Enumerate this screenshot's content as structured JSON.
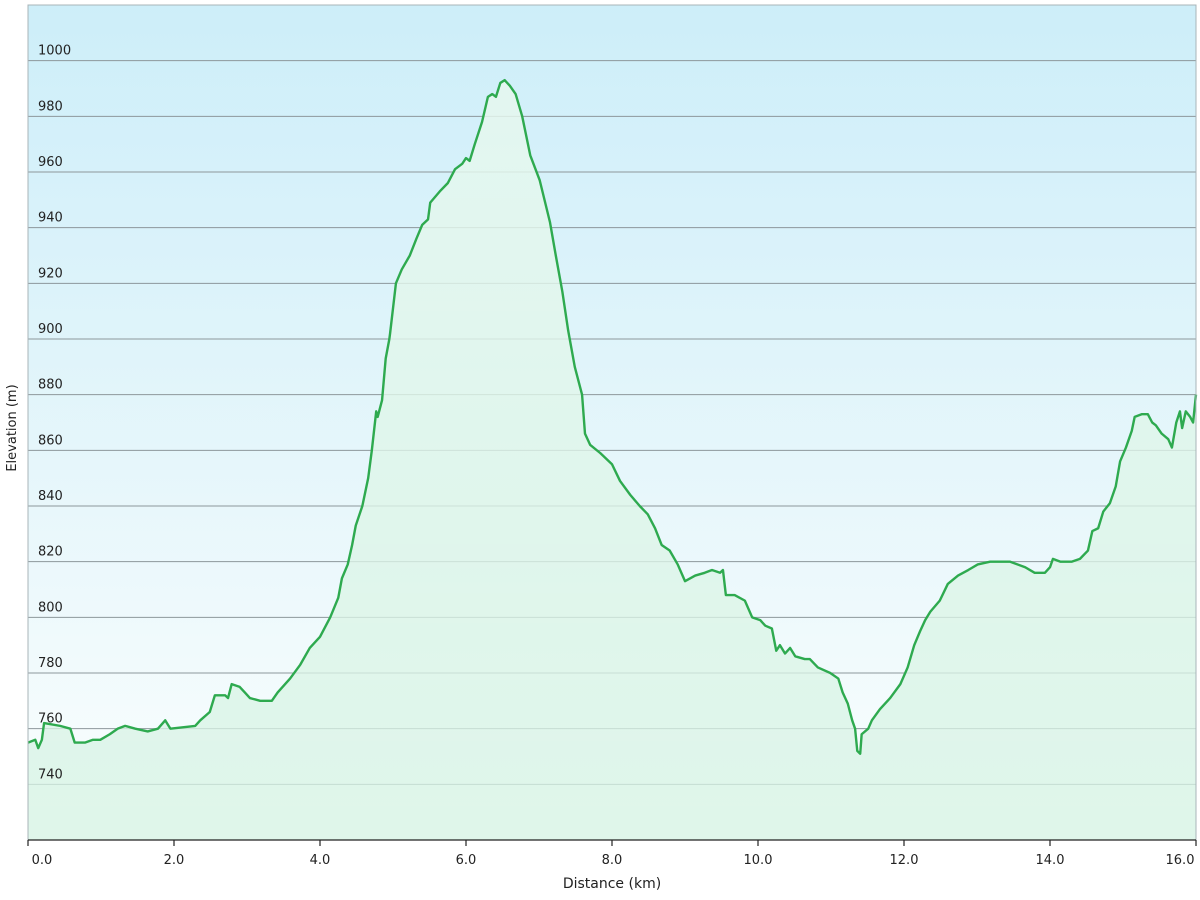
{
  "chart_data": {
    "type": "area",
    "x_label": "Distance  (km)",
    "y_label": "Elevation (m)",
    "color": "#2eaa4f",
    "fill_color": "#d6f3e3",
    "grid": true,
    "xlim": [
      0,
      16
    ],
    "ylim": [
      720,
      1020
    ],
    "xticks": [
      {
        "value": 0,
        "label": "0.0"
      },
      {
        "value": 2,
        "label": "2.0"
      },
      {
        "value": 4,
        "label": "4.0"
      },
      {
        "value": 6,
        "label": "6.0"
      },
      {
        "value": 8,
        "label": "8.0"
      },
      {
        "value": 10,
        "label": "10.0"
      },
      {
        "value": 12,
        "label": "12.0"
      },
      {
        "value": 14,
        "label": "14.0"
      },
      {
        "value": 16,
        "label": "16.0"
      }
    ],
    "yticks": [
      740,
      760,
      780,
      800,
      820,
      840,
      860,
      880,
      900,
      920,
      940,
      960,
      980,
      1000
    ],
    "x": [
      0.0,
      0.1,
      0.14,
      0.19,
      0.22,
      0.44,
      0.58,
      0.64,
      0.78,
      0.89,
      0.99,
      1.12,
      1.23,
      1.33,
      1.47,
      1.64,
      1.78,
      1.88,
      1.95,
      2.29,
      2.36,
      2.49,
      2.56,
      2.7,
      2.74,
      2.79,
      2.9,
      2.97,
      3.04,
      3.18,
      3.34,
      3.42,
      3.59,
      3.73,
      3.86,
      4.0,
      4.14,
      4.25,
      4.3,
      4.38,
      4.44,
      4.49,
      4.58,
      4.66,
      4.71,
      4.77,
      4.79,
      4.85,
      4.9,
      4.95,
      4.96,
      5.04,
      5.12,
      5.23,
      5.32,
      5.4,
      5.48,
      5.51,
      5.64,
      5.75,
      5.85,
      5.95,
      6.0,
      6.05,
      6.12,
      6.22,
      6.3,
      6.36,
      6.41,
      6.47,
      6.53,
      6.6,
      6.68,
      6.77,
      6.88,
      7.01,
      7.15,
      7.23,
      7.32,
      7.4,
      7.49,
      7.59,
      7.63,
      7.7,
      7.84,
      8.0,
      8.11,
      8.25,
      8.38,
      8.49,
      8.59,
      8.68,
      8.79,
      8.9,
      9.0,
      9.14,
      9.27,
      9.37,
      9.48,
      9.52,
      9.56,
      9.68,
      9.82,
      9.92,
      10.03,
      10.1,
      10.19,
      10.25,
      10.3,
      10.37,
      10.44,
      10.51,
      10.64,
      10.71,
      10.82,
      10.99,
      11.1,
      11.16,
      11.23,
      11.29,
      11.33,
      11.36,
      11.4,
      11.42,
      11.51,
      11.56,
      11.67,
      11.81,
      11.95,
      12.05,
      12.14,
      12.22,
      12.29,
      12.36,
      12.49,
      12.6,
      12.74,
      12.88,
      13.01,
      13.18,
      13.45,
      13.66,
      13.79,
      13.93,
      14.0,
      14.04,
      14.14,
      14.3,
      14.41,
      14.52,
      14.58,
      14.66,
      14.73,
      14.82,
      14.9,
      14.96,
      15.04,
      15.12,
      15.16,
      15.26,
      15.34,
      15.4,
      15.45,
      15.53,
      15.62,
      15.67,
      15.73,
      15.78,
      15.81,
      15.86,
      15.92,
      15.96,
      16.0
    ],
    "values": [
      755,
      756,
      753,
      756,
      762,
      761,
      760,
      755,
      755,
      756,
      756,
      758,
      760,
      761,
      760,
      759,
      760,
      763,
      760,
      761,
      763,
      766,
      772,
      772,
      771,
      776,
      775,
      773,
      771,
      770,
      770,
      773,
      778,
      783,
      789,
      793,
      800,
      807,
      814,
      819,
      826,
      833,
      840,
      850,
      860,
      874,
      872,
      878,
      893,
      900,
      902,
      920,
      925,
      930,
      936,
      941,
      943,
      949,
      953,
      956,
      961,
      963,
      965,
      964,
      970,
      978,
      987,
      988,
      987,
      992,
      993,
      991,
      988,
      980,
      966,
      957,
      942,
      930,
      917,
      903,
      890,
      880,
      866,
      862,
      859,
      855,
      849,
      844,
      840,
      837,
      832,
      826,
      824,
      819,
      813,
      815,
      816,
      817,
      816,
      817,
      808,
      808,
      806,
      800,
      799,
      797,
      796,
      788,
      790,
      787,
      789,
      786,
      785,
      785,
      782,
      780,
      778,
      773,
      769,
      763,
      760,
      752,
      751,
      758,
      760,
      763,
      767,
      771,
      776,
      782,
      790,
      795,
      799,
      802,
      806,
      812,
      815,
      817,
      819,
      820,
      820,
      818,
      816,
      816,
      818,
      821,
      820,
      820,
      821,
      824,
      831,
      832,
      838,
      841,
      847,
      856,
      861,
      867,
      872,
      873,
      873,
      870,
      869,
      866,
      864,
      861,
      870,
      874,
      868,
      874,
      872,
      870,
      880
    ]
  }
}
